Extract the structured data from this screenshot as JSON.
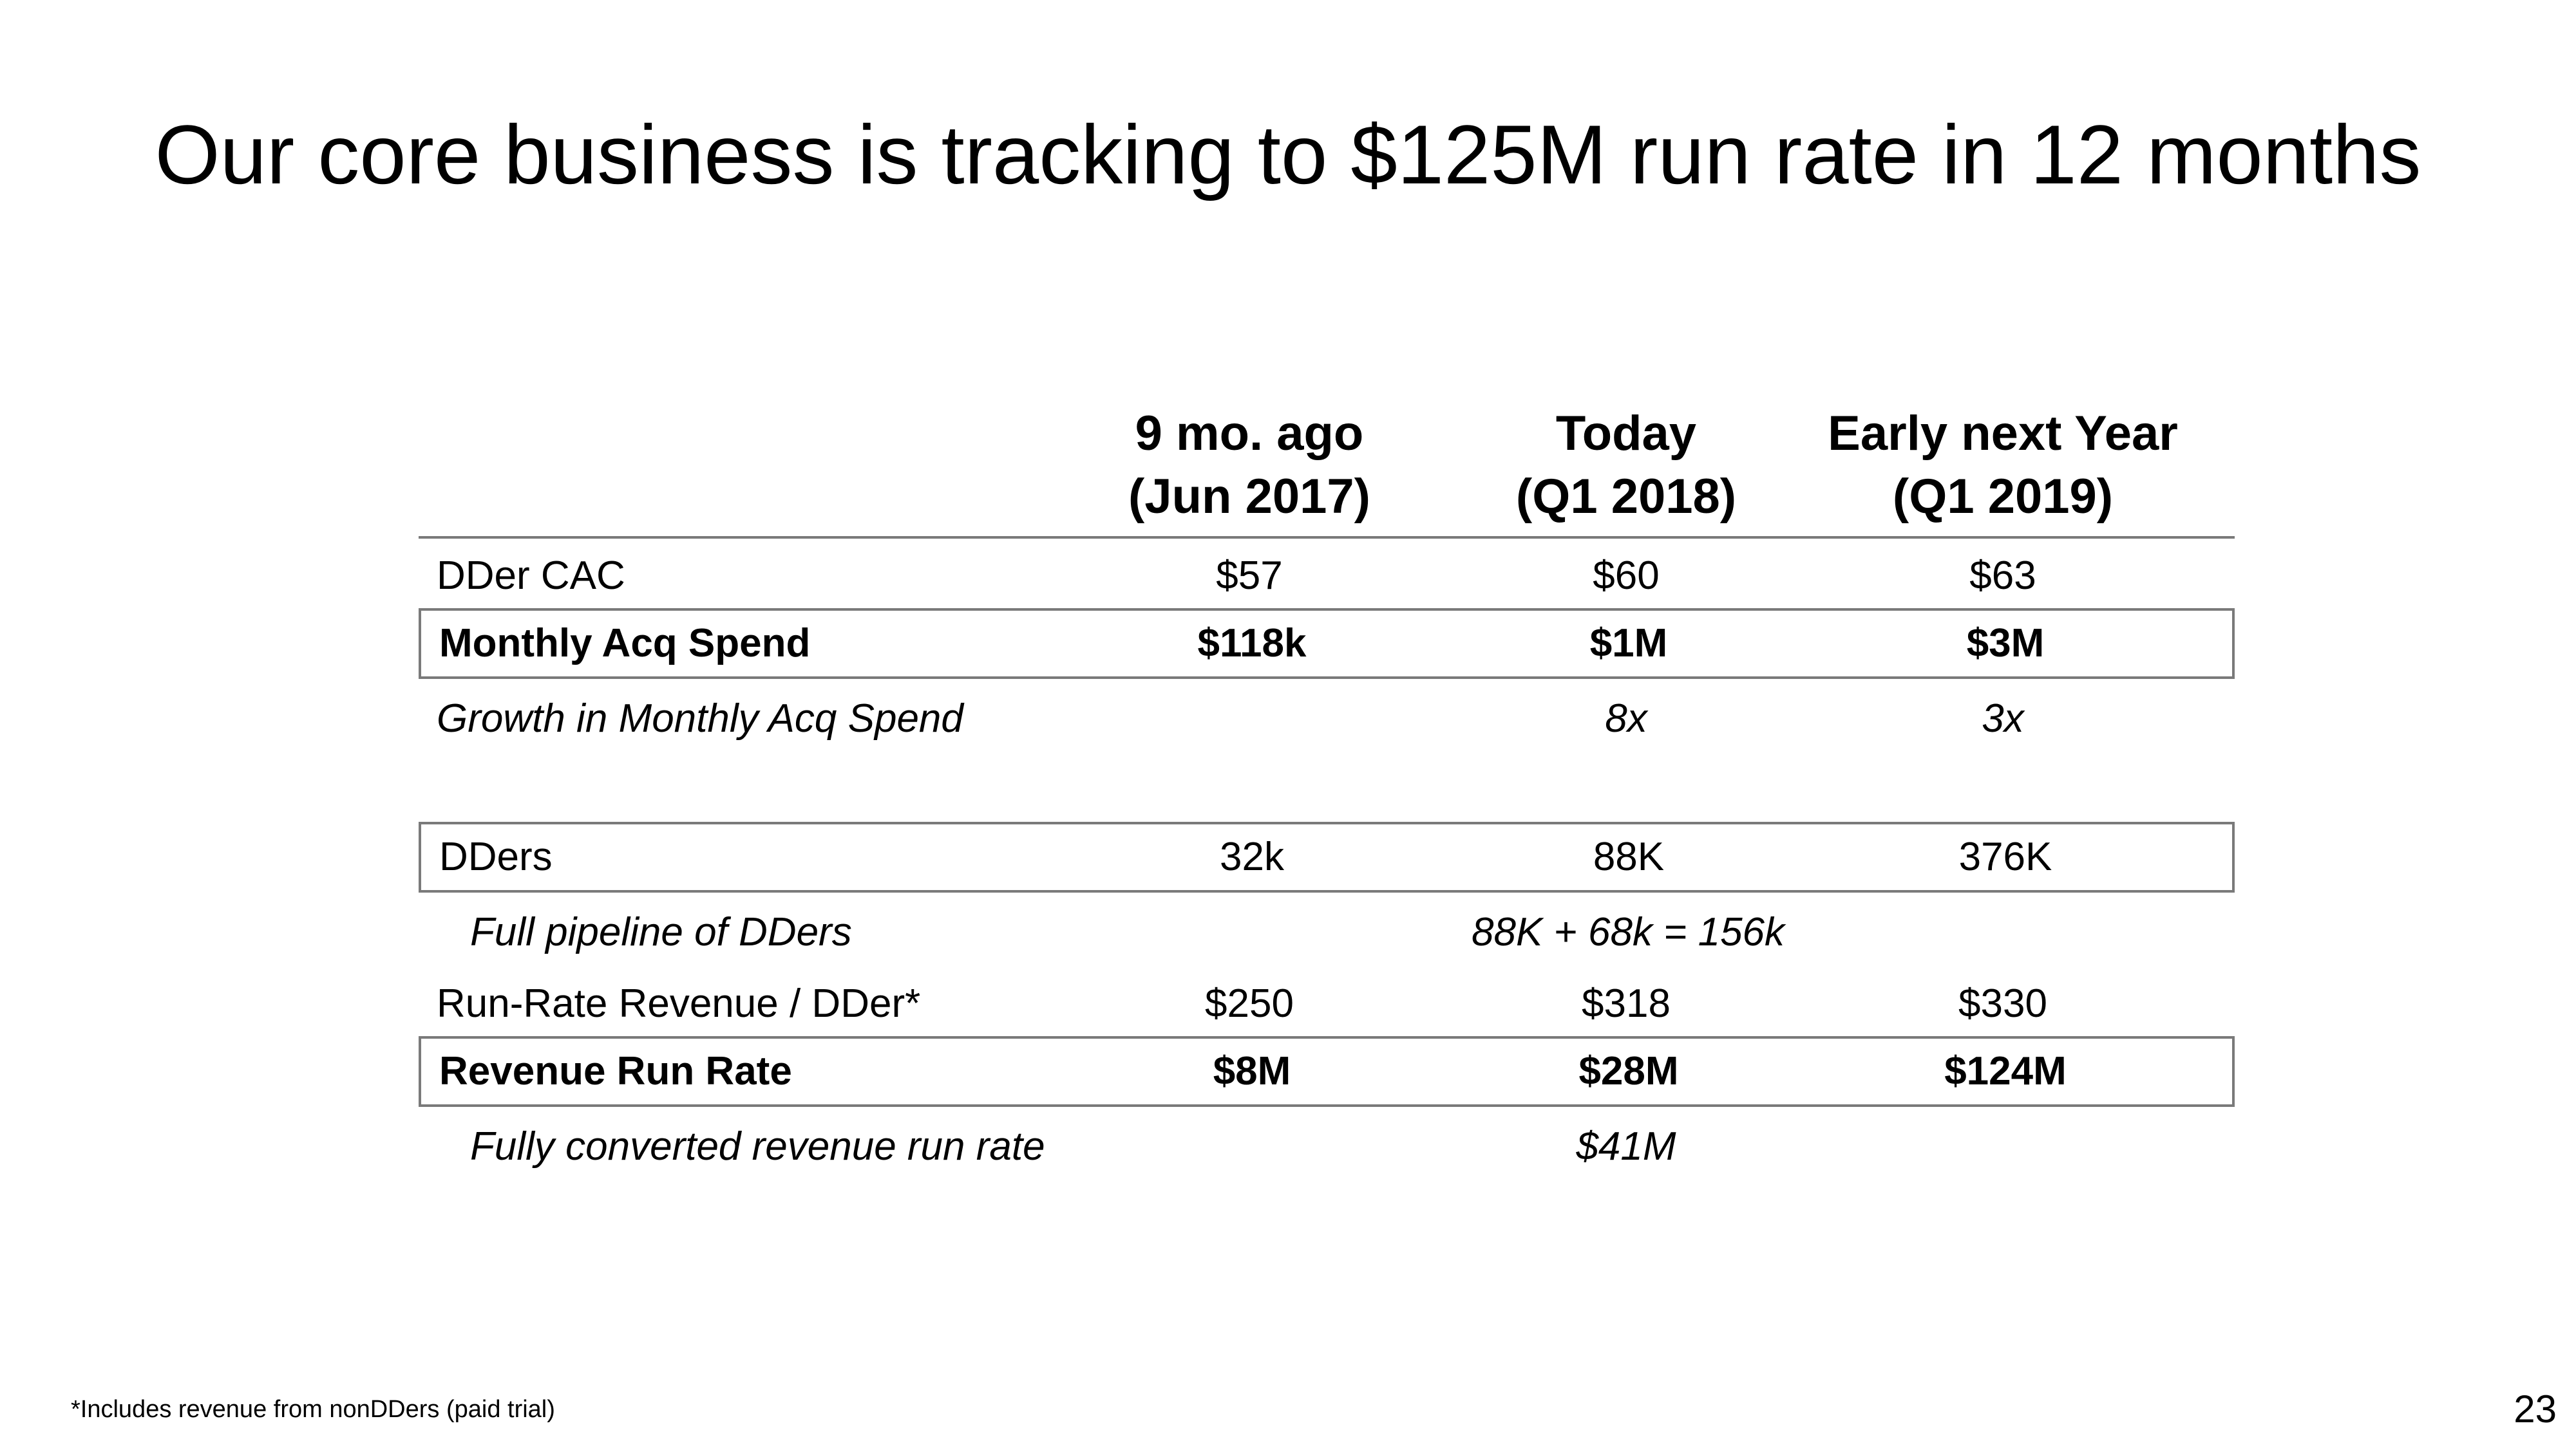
{
  "slide": {
    "title": "Our core business is tracking to $125M run rate in 12 months",
    "footnote": "*Includes revenue from nonDDers (paid trial)",
    "page_number": "23"
  },
  "table": {
    "columns": [
      {
        "line1": "9 mo. ago",
        "line2": "(Jun 2017)"
      },
      {
        "line1": "Today",
        "line2": "(Q1 2018)"
      },
      {
        "line1": "Early next Year",
        "line2": "(Q1 2019)"
      }
    ],
    "rows": {
      "dder_cac": {
        "label": "DDer CAC",
        "values": [
          "$57",
          "$60",
          "$63"
        ]
      },
      "monthly_acq_spend": {
        "label": "Monthly Acq Spend",
        "values": [
          "$118k",
          "$1M",
          "$3M"
        ]
      },
      "growth_monthly_acq_spend": {
        "label": "Growth in Monthly Acq Spend",
        "values": [
          "",
          "8x",
          "3x"
        ]
      },
      "dders": {
        "label": "DDers",
        "values": [
          "32k",
          "88K",
          "376K"
        ]
      },
      "full_pipeline": {
        "label": "Full pipeline of DDers",
        "value": "88K + 68k = 156k"
      },
      "run_rate_rev_per_dder": {
        "label": "Run-Rate Revenue / DDer*",
        "values": [
          "$250",
          "$318",
          "$330"
        ]
      },
      "revenue_run_rate": {
        "label": "Revenue Run Rate",
        "values": [
          "$8M",
          "$28M",
          "$124M"
        ]
      },
      "fully_converted": {
        "label": "Fully converted revenue run rate",
        "value": "$41M"
      }
    }
  }
}
